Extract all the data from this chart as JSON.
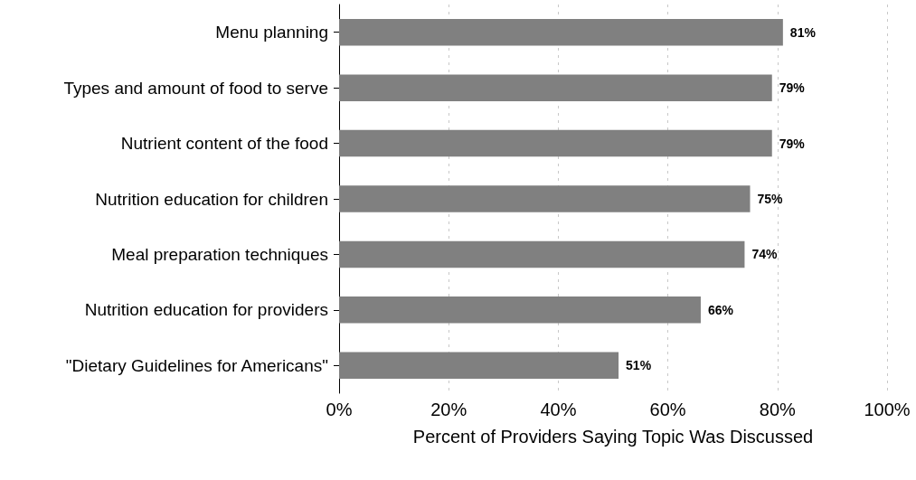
{
  "chart_data": {
    "type": "bar",
    "orientation": "horizontal",
    "xlabel": "Percent of Providers Saying Topic Was Discussed",
    "categories": [
      "Menu planning",
      "Types and amount of food to serve",
      "Nutrient content of the food",
      "Nutrition education for children",
      "Meal preparation techniques",
      "Nutrition education for providers",
      "\"Dietary Guidelines for Americans\""
    ],
    "values": [
      81,
      79,
      79,
      75,
      74,
      66,
      51
    ],
    "value_labels": [
      "81%",
      "79%",
      "79%",
      "75%",
      "74%",
      "66%",
      "51%"
    ],
    "color": "#808080",
    "xlim": [
      0,
      100
    ],
    "xticks": [
      {
        "value": 0,
        "label": "0%"
      },
      {
        "value": 20,
        "label": "20%"
      },
      {
        "value": 40,
        "label": "40%"
      },
      {
        "value": 60,
        "label": "60%"
      },
      {
        "value": 80,
        "label": "80%"
      },
      {
        "value": 100,
        "label": "100%"
      }
    ],
    "grid": "x"
  }
}
